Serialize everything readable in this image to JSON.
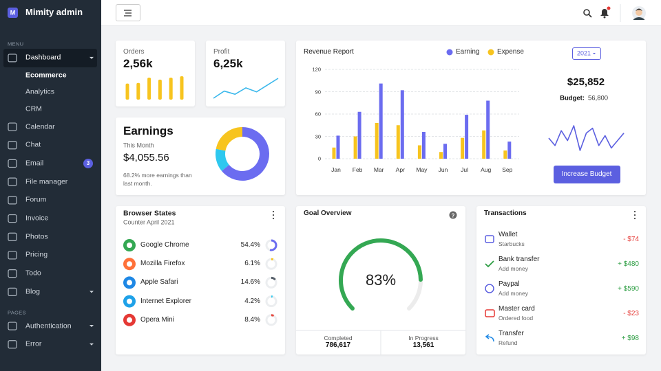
{
  "sidebar": {
    "logo": "M",
    "brand": "Mimity admin",
    "menu_label": "MENU",
    "menu": [
      {
        "label": "Dashboard",
        "active": true,
        "has_submenu": true,
        "children": [
          {
            "label": "Ecommerce",
            "active": true
          },
          {
            "label": "Analytics"
          },
          {
            "label": "CRM"
          }
        ]
      },
      {
        "label": "Calendar"
      },
      {
        "label": "Chat"
      },
      {
        "label": "Email",
        "badge": 3
      },
      {
        "label": "File manager"
      },
      {
        "label": "Forum"
      },
      {
        "label": "Invoice"
      },
      {
        "label": "Photos"
      },
      {
        "label": "Pricing"
      },
      {
        "label": "Todo"
      },
      {
        "label": "Blog",
        "has_submenu": true
      }
    ],
    "pages_label": "PAGES",
    "pages": [
      {
        "label": "Authentication",
        "has_submenu": true
      },
      {
        "label": "Error",
        "has_submenu": true
      }
    ]
  },
  "orders": {
    "title": "Orders",
    "value": "2,56k",
    "bars": [
      24,
      25,
      33,
      30,
      33,
      35
    ],
    "color": "#f7c41f"
  },
  "profit": {
    "title": "Profit",
    "value": "6,25k",
    "line": [
      12,
      30,
      22,
      38,
      28,
      45,
      62
    ],
    "color": "#3bb8ec"
  },
  "earnings": {
    "title": "Earnings",
    "period": "This Month",
    "amount": "$4,055.56",
    "note": "68.2% more earnings than last month.",
    "segments": {
      "values": [
        64,
        14,
        22
      ],
      "colors": [
        "#6b6cf0",
        "#2ec8ef",
        "#f7c41f"
      ]
    }
  },
  "revenue": {
    "title": "Revenue Report",
    "type": "bar",
    "categories": [
      "Jan",
      "Feb",
      "Mar",
      "Apr",
      "May",
      "Jun",
      "Jul",
      "Aug",
      "Sep"
    ],
    "series": [
      {
        "name": "Earning",
        "color": "#6b6cf0",
        "values": [
          31,
          63,
          101,
          92,
          36,
          20,
          59,
          78,
          23
        ]
      },
      {
        "name": "Expense",
        "color": "#f7c41f",
        "values": [
          15,
          30,
          48,
          45,
          18,
          9,
          28,
          38,
          11
        ]
      }
    ],
    "ylim": [
      0,
      120
    ],
    "yticks": [
      0,
      30,
      60,
      90,
      120
    ],
    "grid": true,
    "year": "2021",
    "budget_total": "$25,852",
    "budget_label": "Budget:",
    "budget": "56,800",
    "budget_trend": [
      45,
      30,
      60,
      40,
      70,
      20,
      55,
      65,
      30,
      50,
      25,
      40,
      55
    ],
    "budget_trend_color": "#5b5fe0",
    "button": "Increase Budget"
  },
  "browsers": {
    "title": "Browser States",
    "subtitle": "Counter April 2021",
    "names": [
      "Google Chrome",
      "Mozilla Firefox",
      "Apple Safari",
      "Internet Explorer",
      "Opera Mini"
    ],
    "values": [
      54.4,
      6.1,
      14.6,
      4.2,
      8.4
    ],
    "value_labels": [
      "54.4%",
      "6.1%",
      "14.6%",
      "4.2%",
      "8.4%"
    ],
    "colors": [
      "#6b6cf0",
      "#f7c41f",
      "#555e68",
      "#2ec8ef",
      "#e5483f"
    ]
  },
  "goal": {
    "title": "Goal Overview",
    "value": 83,
    "value_label": "83%",
    "color": "#34a853",
    "completed_label": "Completed",
    "completed": "786,617",
    "in_progress_label": "In Progress",
    "in_progress": "13,561"
  },
  "transactions": {
    "title": "Transactions",
    "items": [
      {
        "title": "Wallet",
        "subtitle": "Starbucks",
        "amount": "- $74",
        "color": "#e53935"
      },
      {
        "title": "Bank transfer",
        "subtitle": "Add money",
        "amount": "+ $480",
        "color": "#2e9e44"
      },
      {
        "title": "Paypal",
        "subtitle": "Add money",
        "amount": "+ $590",
        "color": "#2e9e44"
      },
      {
        "title": "Master card",
        "subtitle": "Ordered food",
        "amount": "- $23",
        "color": "#e53935"
      },
      {
        "title": "Transfer",
        "subtitle": "Refund",
        "amount": "+ $98",
        "color": "#2e9e44"
      }
    ]
  }
}
